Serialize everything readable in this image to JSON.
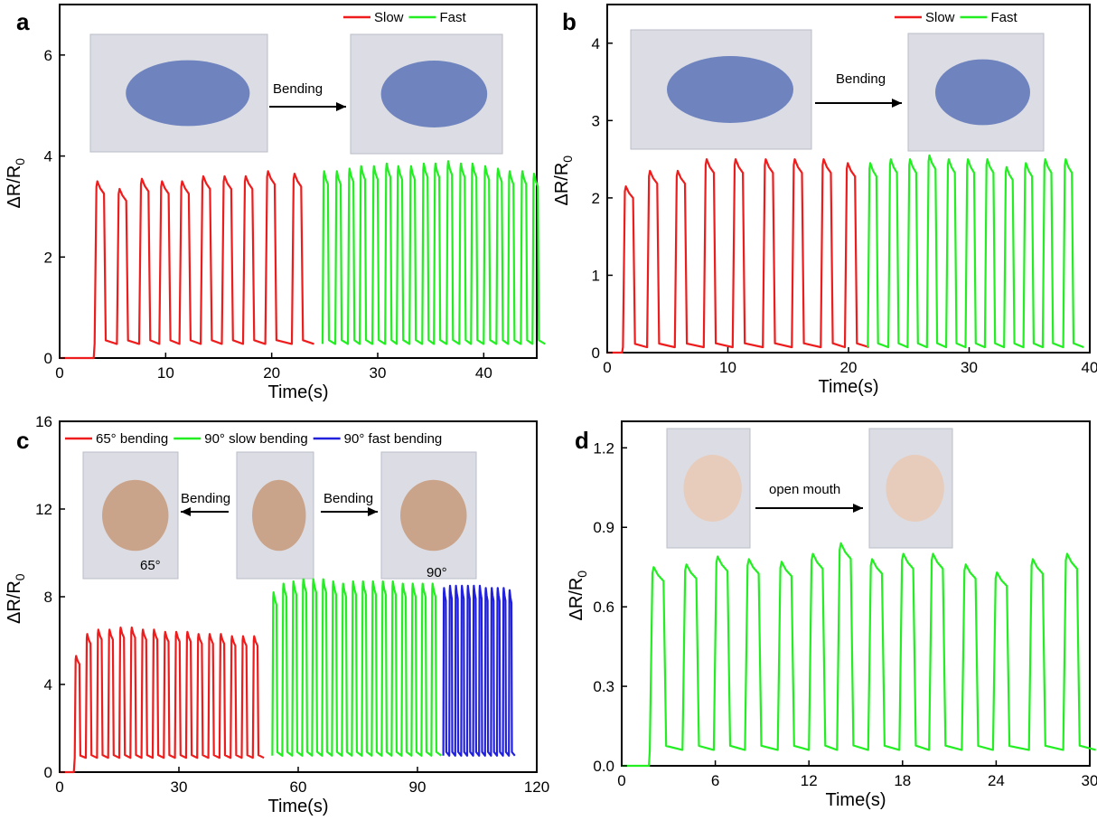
{
  "panels": [
    {
      "label": "a",
      "chart_data": {
        "type": "line",
        "xlabel": "Time(s)",
        "ylabel_main": "ΔR/R",
        "ylabel_sub": "0",
        "xlim": [
          0,
          45
        ],
        "ylim": [
          0,
          7
        ],
        "xticks": [
          0,
          10,
          20,
          30,
          40
        ],
        "yticks": [
          0,
          2,
          4,
          6
        ],
        "grid": false,
        "legend_position": "top-right",
        "series": [
          {
            "name": "Slow",
            "color": "#ee1c1c",
            "baseline": 0.28,
            "pulses": [
              [
                3.3,
                3.5
              ],
              [
                5.4,
                3.35
              ],
              [
                7.5,
                3.55
              ],
              [
                9.4,
                3.5
              ],
              [
                11.3,
                3.5
              ],
              [
                13.3,
                3.6
              ],
              [
                15.3,
                3.6
              ],
              [
                17.3,
                3.6
              ],
              [
                19.4,
                3.7
              ],
              [
                21.9,
                3.65
              ]
            ]
          },
          {
            "name": "Fast",
            "color": "#22ee22",
            "baseline": 0.28,
            "pulses": [
              [
                24.8,
                3.7
              ],
              [
                26.0,
                3.7
              ],
              [
                27.2,
                3.75
              ],
              [
                28.3,
                3.8
              ],
              [
                29.5,
                3.8
              ],
              [
                30.7,
                3.85
              ],
              [
                31.8,
                3.8
              ],
              [
                33.0,
                3.8
              ],
              [
                34.2,
                3.85
              ],
              [
                35.3,
                3.85
              ],
              [
                36.5,
                3.9
              ],
              [
                37.7,
                3.85
              ],
              [
                38.8,
                3.85
              ],
              [
                40.0,
                3.8
              ],
              [
                41.2,
                3.75
              ],
              [
                42.3,
                3.7
              ],
              [
                43.5,
                3.7
              ],
              [
                44.6,
                3.65
              ]
            ]
          }
        ],
        "annotations": [
          "Bending"
        ]
      }
    },
    {
      "label": "b",
      "chart_data": {
        "type": "line",
        "xlabel": "Time(s)",
        "ylabel_main": "ΔR/R",
        "ylabel_sub": "0",
        "xlim": [
          0,
          40
        ],
        "ylim": [
          0,
          4.5
        ],
        "xticks": [
          0,
          10,
          20,
          30,
          40
        ],
        "yticks": [
          0,
          1,
          2,
          3,
          4
        ],
        "grid": false,
        "legend_position": "top-right",
        "series": [
          {
            "name": "Slow",
            "color": "#ee1c1c",
            "baseline": 0.07,
            "pulses": [
              [
                1.3,
                2.15
              ],
              [
                3.3,
                2.35
              ],
              [
                5.6,
                2.35
              ],
              [
                8.0,
                2.5
              ],
              [
                10.4,
                2.5
              ],
              [
                12.9,
                2.5
              ],
              [
                15.3,
                2.5
              ],
              [
                17.7,
                2.5
              ],
              [
                19.7,
                2.45
              ]
            ]
          },
          {
            "name": "Fast",
            "color": "#22ee22",
            "baseline": 0.07,
            "pulses": [
              [
                21.6,
                2.45
              ],
              [
                23.3,
                2.5
              ],
              [
                24.9,
                2.5
              ],
              [
                26.5,
                2.55
              ],
              [
                28.1,
                2.5
              ],
              [
                29.7,
                2.5
              ],
              [
                31.3,
                2.5
              ],
              [
                32.9,
                2.4
              ],
              [
                34.5,
                2.45
              ],
              [
                36.1,
                2.5
              ],
              [
                37.8,
                2.5
              ]
            ]
          }
        ],
        "annotations": [
          "Bending"
        ]
      }
    },
    {
      "label": "c",
      "chart_data": {
        "type": "line",
        "xlabel": "Time(s)",
        "ylabel_main": "ΔR/R",
        "ylabel_sub": "0",
        "xlim": [
          0,
          120
        ],
        "ylim": [
          0,
          16
        ],
        "xticks": [
          0,
          30,
          60,
          90,
          120
        ],
        "yticks": [
          0,
          4,
          8,
          12,
          16
        ],
        "grid": false,
        "legend_position": "top",
        "series": [
          {
            "name": "65° bending",
            "color": "#ee1c1c",
            "baseline": 0.65,
            "pulses": [
              [
                3.8,
                5.3
              ],
              [
                6.6,
                6.3
              ],
              [
                9.4,
                6.5
              ],
              [
                12.2,
                6.5
              ],
              [
                15.0,
                6.6
              ],
              [
                17.8,
                6.6
              ],
              [
                20.6,
                6.5
              ],
              [
                23.4,
                6.5
              ],
              [
                26.2,
                6.4
              ],
              [
                29.0,
                6.4
              ],
              [
                31.8,
                6.4
              ],
              [
                34.6,
                6.3
              ],
              [
                37.4,
                6.3
              ],
              [
                40.2,
                6.3
              ],
              [
                43.0,
                6.2
              ],
              [
                45.8,
                6.2
              ],
              [
                48.6,
                6.2
              ]
            ]
          },
          {
            "name": "90° slow bending",
            "color": "#22ee22",
            "baseline": 0.75,
            "pulses": [
              [
                53.5,
                8.2
              ],
              [
                56.0,
                8.6
              ],
              [
                58.5,
                8.7
              ],
              [
                61.0,
                8.8
              ],
              [
                63.5,
                8.8
              ],
              [
                66.0,
                8.8
              ],
              [
                68.5,
                8.7
              ],
              [
                71.0,
                8.6
              ],
              [
                73.5,
                8.7
              ],
              [
                76.0,
                8.7
              ],
              [
                78.5,
                8.7
              ],
              [
                81.0,
                8.7
              ],
              [
                83.5,
                8.7
              ],
              [
                86.0,
                8.6
              ],
              [
                88.5,
                8.6
              ],
              [
                91.0,
                8.6
              ],
              [
                93.5,
                8.6
              ]
            ]
          },
          {
            "name": "90° fast bending",
            "color": "#2020dd",
            "baseline": 0.75,
            "pulses": [
              [
                96.5,
                8.4
              ],
              [
                98.0,
                8.5
              ],
              [
                99.5,
                8.5
              ],
              [
                101.0,
                8.5
              ],
              [
                102.5,
                8.5
              ],
              [
                104.0,
                8.5
              ],
              [
                105.5,
                8.5
              ],
              [
                107.0,
                8.4
              ],
              [
                108.5,
                8.4
              ],
              [
                110.0,
                8.4
              ],
              [
                111.5,
                8.4
              ],
              [
                113.0,
                8.3
              ]
            ]
          }
        ],
        "annotations": [
          "Bending",
          "Bending",
          "65°",
          "90°"
        ]
      }
    },
    {
      "label": "d",
      "chart_data": {
        "type": "line",
        "xlabel": "Time(s)",
        "ylabel_main": "ΔR/R",
        "ylabel_sub": "0",
        "xlim": [
          0,
          30
        ],
        "ylim": [
          0,
          1.3
        ],
        "xticks": [
          0,
          6,
          12,
          18,
          24,
          30
        ],
        "xtick_labels": [
          "0",
          "6",
          "12",
          "18",
          "24",
          "30"
        ],
        "yticks": [
          0.0,
          0.3,
          0.6,
          0.9,
          1.2
        ],
        "ytick_labels": [
          "0.0",
          "0.3",
          "0.6",
          "0.9",
          "1.2"
        ],
        "grid": false,
        "series": [
          {
            "color": "#22ee22",
            "baseline": 0.06,
            "pulses": [
              [
                1.8,
                0.75
              ],
              [
                3.9,
                0.76
              ],
              [
                5.9,
                0.79
              ],
              [
                7.9,
                0.78
              ],
              [
                10.0,
                0.77
              ],
              [
                12.0,
                0.8
              ],
              [
                13.8,
                0.84
              ],
              [
                15.8,
                0.78
              ],
              [
                17.8,
                0.8
              ],
              [
                19.7,
                0.8
              ],
              [
                21.8,
                0.76
              ],
              [
                23.8,
                0.73
              ],
              [
                26.1,
                0.78
              ],
              [
                28.3,
                0.8
              ]
            ]
          }
        ],
        "annotations": [
          "open mouth"
        ]
      }
    }
  ]
}
